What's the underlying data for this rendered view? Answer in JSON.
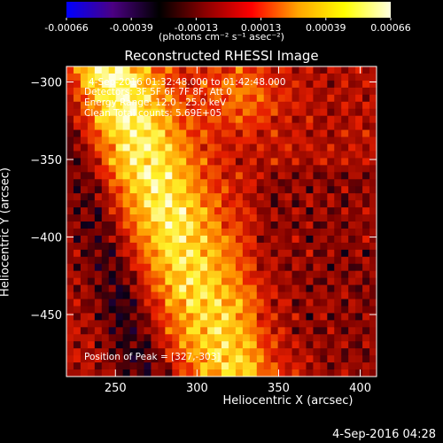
{
  "window": {
    "title": "Reconstructed RHESSI Image",
    "timestamp_footer": "4-Sep-2016 04:28"
  },
  "colorbar": {
    "ticks": [
      "-0.00066",
      "-0.00039",
      "-0.00013",
      "0.00013",
      "0.00039",
      "0.00066"
    ],
    "unit_label": "(photons cm⁻² s⁻¹ asec⁻²)",
    "colors": [
      "#0000ff",
      "#4b0082",
      "#000000",
      "#8b0000",
      "#ff0000",
      "#ffa500",
      "#ffff00",
      "#ffffe0"
    ]
  },
  "annotations": {
    "time_range": "4-Sep-2016 01:32:48.000 to 01:42:48.000",
    "detectors": "Detectors: 3F 5F 6F 7F 8F, Att 0",
    "energy_range": "Energy Range: 12.0 - 25.0 keV",
    "method": "Clean     Total counts: 5.69E+05",
    "peak_position": "Position of Peak = [327,-303]"
  },
  "chart_data": {
    "type": "heatmap",
    "title": "Reconstructed RHESSI Image",
    "xlabel": "Heliocentric X (arcsec)",
    "ylabel": "Heliocentric Y (arcsec)",
    "xlim": [
      220,
      410
    ],
    "ylim": [
      -490,
      -290
    ],
    "x_ticks": [
      250,
      300,
      350,
      400
    ],
    "y_ticks": [
      -300,
      -350,
      -400,
      -450
    ],
    "x_tick_labels": [
      "250",
      "300",
      "350",
      "400"
    ],
    "y_tick_labels": [
      "−300",
      "−350",
      "−400",
      "−450"
    ],
    "colorbar_range": [
      -0.00066,
      0.00066
    ],
    "peak": [
      327,
      -303
    ]
  }
}
